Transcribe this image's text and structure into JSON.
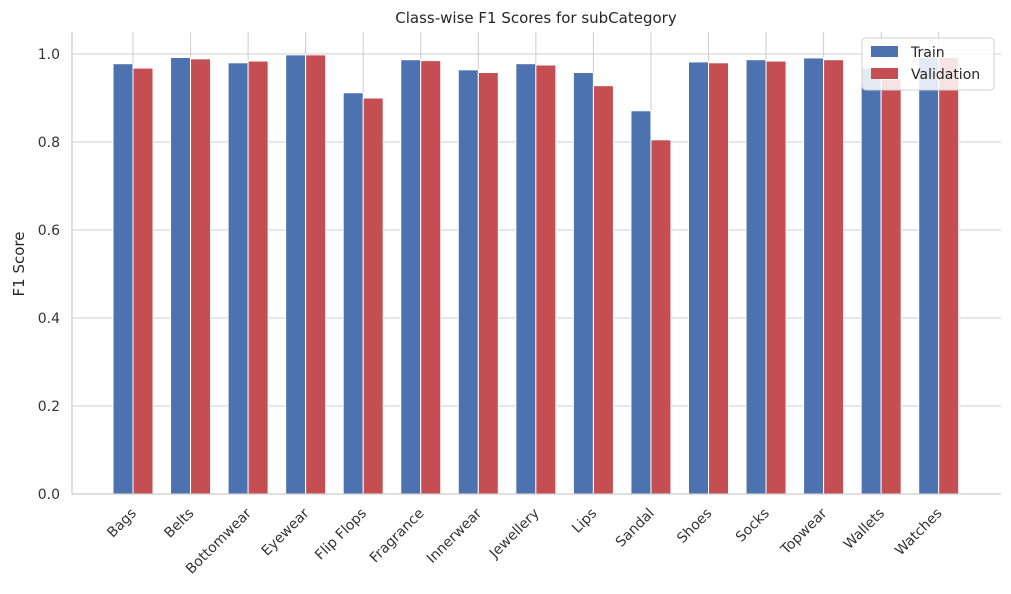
{
  "chart_data": {
    "type": "bar",
    "title": "Class-wise F1 Scores for subCategory",
    "xlabel": "",
    "ylabel": "F1 Score",
    "ylim": [
      0,
      1.05
    ],
    "yticks": [
      "0.0",
      "0.2",
      "0.4",
      "0.6",
      "0.8",
      "1.0"
    ],
    "grid": true,
    "legend_position": "top-right",
    "categories": [
      "Bags",
      "Belts",
      "Bottomwear",
      "Eyewear",
      "Flip Flops",
      "Fragrance",
      "Innerwear",
      "Jewellery",
      "Lips",
      "Sandal",
      "Shoes",
      "Socks",
      "Topwear",
      "Wallets",
      "Watches"
    ],
    "series": [
      {
        "name": "Train",
        "color": "#4c72b0",
        "values": [
          0.978,
          0.992,
          0.98,
          0.998,
          0.912,
          0.987,
          0.964,
          0.978,
          0.958,
          0.871,
          0.982,
          0.987,
          0.991,
          0.968,
          0.993
        ]
      },
      {
        "name": "Validation",
        "color": "#c44e52",
        "values": [
          0.968,
          0.989,
          0.984,
          0.998,
          0.9,
          0.985,
          0.958,
          0.975,
          0.928,
          0.805,
          0.98,
          0.984,
          0.987,
          0.942,
          0.992
        ]
      }
    ]
  }
}
